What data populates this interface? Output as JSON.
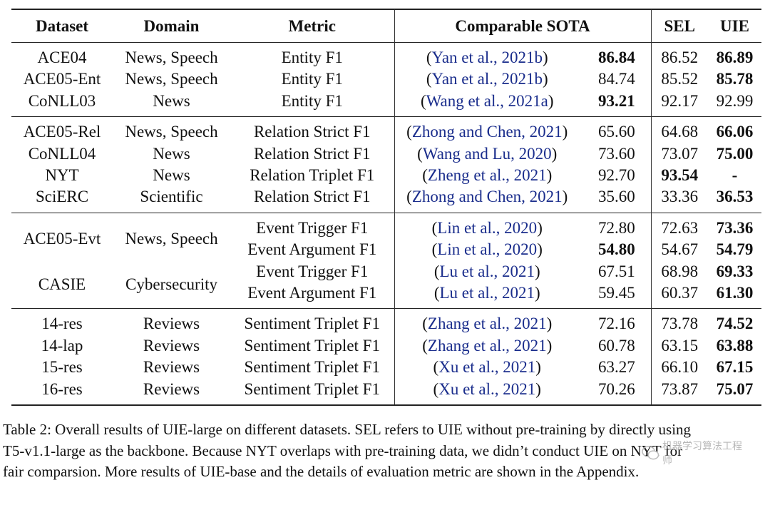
{
  "headers": [
    "Dataset",
    "Domain",
    "Metric",
    "Comparable SOTA",
    "SEL",
    "UIE"
  ],
  "groups": [
    {
      "rows": [
        {
          "dataset": "ACE04",
          "domain": "News, Speech",
          "metric": "Entity F1",
          "cite": "Yan et al., 2021b",
          "sota": "86.84",
          "sota_bold": true,
          "sel": "86.52",
          "sel_bold": false,
          "uie": "86.89",
          "uie_bold": true
        },
        {
          "dataset": "ACE05-Ent",
          "domain": "News, Speech",
          "metric": "Entity F1",
          "cite": "Yan et al., 2021b",
          "sota": "84.74",
          "sota_bold": false,
          "sel": "85.52",
          "sel_bold": false,
          "uie": "85.78",
          "uie_bold": true
        },
        {
          "dataset": "CoNLL03",
          "domain": "News",
          "metric": "Entity F1",
          "cite": "Wang et al., 2021a",
          "sota": "93.21",
          "sota_bold": true,
          "sel": "92.17",
          "sel_bold": false,
          "uie": "92.99",
          "uie_bold": false
        }
      ]
    },
    {
      "rows": [
        {
          "dataset": "ACE05-Rel",
          "domain": "News, Speech",
          "metric": "Relation Strict F1",
          "cite": "Zhong and Chen, 2021",
          "sota": "65.60",
          "sota_bold": false,
          "sel": "64.68",
          "sel_bold": false,
          "uie": "66.06",
          "uie_bold": true
        },
        {
          "dataset": "CoNLL04",
          "domain": "News",
          "metric": "Relation Strict F1",
          "cite": "Wang and Lu, 2020",
          "sota": "73.60",
          "sota_bold": false,
          "sel": "73.07",
          "sel_bold": false,
          "uie": "75.00",
          "uie_bold": true
        },
        {
          "dataset": "NYT",
          "domain": "News",
          "metric": "Relation Triplet F1",
          "cite": "Zheng et al., 2021",
          "sota": "92.70",
          "sota_bold": false,
          "sel": "93.54",
          "sel_bold": true,
          "uie": "-",
          "uie_bold": true
        },
        {
          "dataset": "SciERC",
          "domain": "Scientific",
          "metric": "Relation Strict F1",
          "cite": "Zhong and Chen, 2021",
          "sota": "35.60",
          "sota_bold": false,
          "sel": "33.36",
          "sel_bold": false,
          "uie": "36.53",
          "uie_bold": true
        }
      ]
    },
    {
      "rows": [
        {
          "dataset": "ACE05-Evt",
          "domain": "News, Speech",
          "span": 2,
          "metric": "Event Trigger F1",
          "cite": "Lin et al., 2020",
          "sota": "72.80",
          "sota_bold": false,
          "sel": "72.63",
          "sel_bold": false,
          "uie": "73.36",
          "uie_bold": true
        },
        {
          "metric": "Event Argument F1",
          "cite": "Lin et al., 2020",
          "sota": "54.80",
          "sota_bold": true,
          "sel": "54.67",
          "sel_bold": false,
          "uie": "54.79",
          "uie_bold": true
        },
        {
          "dataset": "CASIE",
          "domain": "Cybersecurity",
          "span": 2,
          "metric": "Event Trigger F1",
          "cite": "Lu et al., 2021",
          "sota": "67.51",
          "sota_bold": false,
          "sel": "68.98",
          "sel_bold": false,
          "uie": "69.33",
          "uie_bold": true
        },
        {
          "metric": "Event Argument F1",
          "cite": "Lu et al., 2021",
          "sota": "59.45",
          "sota_bold": false,
          "sel": "60.37",
          "sel_bold": false,
          "uie": "61.30",
          "uie_bold": true
        }
      ]
    },
    {
      "rows": [
        {
          "dataset": "14-res",
          "domain": "Reviews",
          "metric": "Sentiment Triplet F1",
          "cite": "Zhang et al., 2021",
          "sota": "72.16",
          "sota_bold": false,
          "sel": "73.78",
          "sel_bold": false,
          "uie": "74.52",
          "uie_bold": true
        },
        {
          "dataset": "14-lap",
          "domain": "Reviews",
          "metric": "Sentiment Triplet F1",
          "cite": "Zhang et al., 2021",
          "sota": "60.78",
          "sota_bold": false,
          "sel": "63.15",
          "sel_bold": false,
          "uie": "63.88",
          "uie_bold": true
        },
        {
          "dataset": "15-res",
          "domain": "Reviews",
          "metric": "Sentiment Triplet F1",
          "cite": "Xu et al., 2021",
          "sota": "63.27",
          "sota_bold": false,
          "sel": "66.10",
          "sel_bold": false,
          "uie": "67.15",
          "uie_bold": true
        },
        {
          "dataset": "16-res",
          "domain": "Reviews",
          "metric": "Sentiment Triplet F1",
          "cite": "Xu et al., 2021",
          "sota": "70.26",
          "sota_bold": false,
          "sel": "73.87",
          "sel_bold": false,
          "uie": "75.07",
          "uie_bold": true
        }
      ]
    }
  ],
  "caption": {
    "line1": "Table 2: Overall results of UIE-large on different datasets. SEL refers to UIE without pre-training by directly using",
    "line2": "T5-v1.1-large as the backbone. Because NYT overlaps with pre-training data, we didn’t conduct UIE on NYT for",
    "line3": "fair comparsion. More results of UIE-base and the details of evaluation metric are shown in the Appendix."
  },
  "watermark": "机器学习算法工程师",
  "colors": {
    "citation": "#1a2d8c",
    "rule": "#222222"
  }
}
